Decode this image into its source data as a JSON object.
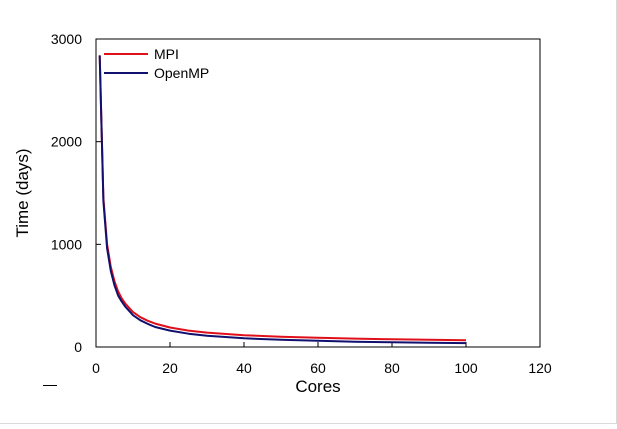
{
  "chart_data": {
    "type": "line",
    "title": "",
    "xlabel": "Cores",
    "ylabel": "Time (days)",
    "xlim": [
      0,
      120
    ],
    "ylim": [
      0,
      3000
    ],
    "xticks": [
      0,
      20,
      40,
      60,
      80,
      100,
      120
    ],
    "yticks": [
      0,
      1000,
      2000,
      3000
    ],
    "grid": false,
    "legend_position": "top-left",
    "series": [
      {
        "name": "MPI",
        "color": "#e0101a",
        "x": [
          1,
          2,
          3,
          4,
          5,
          6,
          7,
          8,
          10,
          12,
          14,
          16,
          20,
          25,
          30,
          40,
          50,
          60,
          70,
          80,
          90,
          100
        ],
        "y": [
          2840,
          1450,
          1000,
          780,
          640,
          540,
          470,
          420,
          340,
          290,
          255,
          228,
          190,
          160,
          140,
          115,
          100,
          90,
          82,
          75,
          70,
          65
        ]
      },
      {
        "name": "OpenMP",
        "color": "#10106e",
        "x": [
          1,
          2,
          3,
          4,
          5,
          6,
          7,
          8,
          10,
          12,
          14,
          16,
          20,
          25,
          30,
          40,
          50,
          60,
          70,
          80,
          90,
          100
        ],
        "y": [
          2840,
          1420,
          960,
          740,
          600,
          500,
          440,
          390,
          310,
          260,
          225,
          195,
          160,
          130,
          110,
          85,
          70,
          60,
          52,
          46,
          42,
          38
        ]
      }
    ]
  }
}
